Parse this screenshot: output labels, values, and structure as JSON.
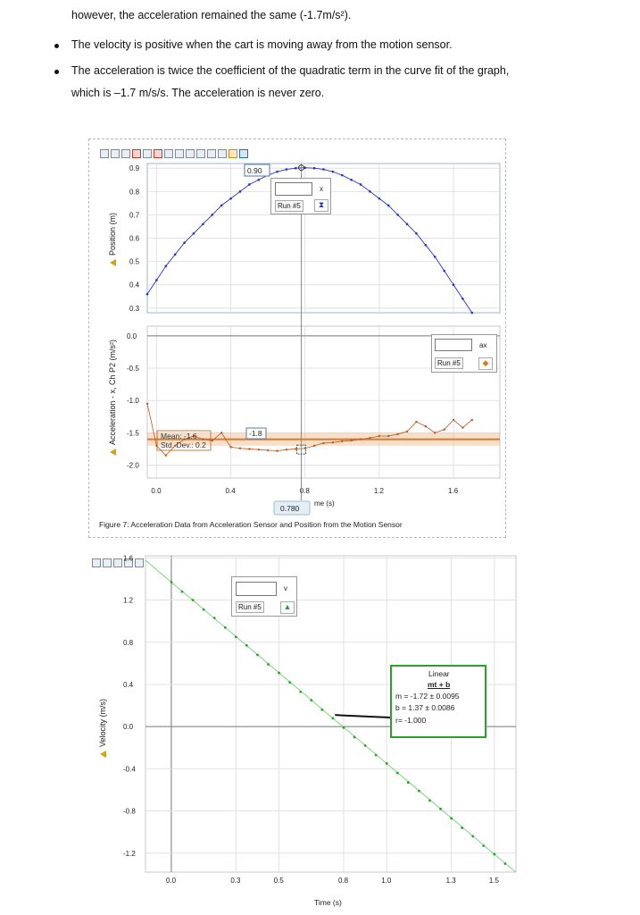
{
  "text": {
    "line1": "however, the acceleration remained the same (-1.7m/s²).",
    "bullet1": "The velocity is positive when the cart is moving away from the motion sensor.",
    "bullet2_line1": "The acceleration is twice the coefficient of the quadratic term in the curve fit of the graph,",
    "bullet2_line2": "which is –1.7 m/s/s. The acceleration is never zero."
  },
  "figure7": {
    "caption": "Figure 7: Acceleration Data from Acceleration Sensor and Position from the Motion Sensor",
    "xaxis_label": "me (s)",
    "cursor_x_label": "0.780",
    "position_readout": "0.90",
    "accel_readout": "-1.8",
    "stats_mean": "Mean: -1.6",
    "stats_std": "Std. Dev.: 0.2",
    "position_control": {
      "unit": "x",
      "run": "Run #5"
    },
    "accel_control": {
      "unit": "ax",
      "run": "Run #5"
    }
  },
  "velocity_graph": {
    "xaxis_label": "Time (s)",
    "control": {
      "unit": "v",
      "run": "Run #5"
    },
    "fit": {
      "title": "Linear",
      "formula": "mt + b",
      "m": "m = -1.72 ± 0.0095",
      "b": "b = 1.37 ± 0.0086",
      "r": "r= -1.000"
    }
  },
  "colors": {
    "position": "#2233cc",
    "accel": "#c0551b",
    "velocity": "#2ca02c",
    "fit_box": "#2ca02c"
  },
  "chart_data": [
    {
      "type": "line",
      "ylabel": "Position (m)",
      "xlim": [
        -0.05,
        1.85
      ],
      "ylim": [
        0.28,
        0.92
      ],
      "xticks": [
        0.0,
        0.4,
        0.8,
        1.2,
        1.6
      ],
      "yticks": [
        0.3,
        0.4,
        0.5,
        0.6,
        0.7,
        0.8,
        0.9
      ],
      "grid": true,
      "series": [
        {
          "name": "Run #5",
          "x": [
            -0.05,
            0.0,
            0.05,
            0.1,
            0.15,
            0.2,
            0.25,
            0.3,
            0.35,
            0.4,
            0.45,
            0.5,
            0.55,
            0.6,
            0.65,
            0.7,
            0.75,
            0.8,
            0.85,
            0.9,
            0.95,
            1.0,
            1.05,
            1.1,
            1.15,
            1.2,
            1.25,
            1.3,
            1.35,
            1.4,
            1.45,
            1.5,
            1.55,
            1.6,
            1.65,
            1.7
          ],
          "y": [
            0.36,
            0.42,
            0.48,
            0.53,
            0.58,
            0.62,
            0.66,
            0.7,
            0.74,
            0.77,
            0.8,
            0.83,
            0.85,
            0.87,
            0.885,
            0.895,
            0.9,
            0.902,
            0.9,
            0.895,
            0.885,
            0.87,
            0.85,
            0.83,
            0.8,
            0.77,
            0.74,
            0.7,
            0.66,
            0.62,
            0.57,
            0.52,
            0.46,
            0.4,
            0.34,
            0.28
          ]
        }
      ]
    },
    {
      "type": "line",
      "ylabel": "Acceleration - x, Ch P2 (m/s²)",
      "xlim": [
        -0.05,
        1.85
      ],
      "ylim": [
        -2.2,
        0.15
      ],
      "xticks": [
        0.0,
        0.4,
        0.8,
        1.2,
        1.6
      ],
      "yticks": [
        0.0,
        -0.5,
        -1.0,
        -1.5,
        -2.0
      ],
      "grid": true,
      "series": [
        {
          "name": "Run #5",
          "x": [
            -0.05,
            0.0,
            0.05,
            0.1,
            0.15,
            0.2,
            0.25,
            0.3,
            0.35,
            0.4,
            0.45,
            0.5,
            0.55,
            0.6,
            0.65,
            0.7,
            0.75,
            0.8,
            0.85,
            0.9,
            0.95,
            1.0,
            1.05,
            1.1,
            1.15,
            1.2,
            1.25,
            1.3,
            1.35,
            1.4,
            1.45,
            1.5,
            1.55,
            1.6,
            1.65,
            1.7
          ],
          "y": [
            -1.05,
            -1.7,
            -1.85,
            -1.7,
            -1.6,
            -1.55,
            -1.6,
            -1.62,
            -1.5,
            -1.72,
            -1.74,
            -1.75,
            -1.76,
            -1.77,
            -1.78,
            -1.76,
            -1.75,
            -1.74,
            -1.7,
            -1.66,
            -1.65,
            -1.63,
            -1.62,
            -1.6,
            -1.58,
            -1.55,
            -1.55,
            -1.52,
            -1.48,
            -1.33,
            -1.4,
            -1.5,
            -1.45,
            -1.3,
            -1.42,
            -1.3
          ]
        }
      ],
      "stats": {
        "mean": -1.6,
        "std_dev": 0.2
      }
    },
    {
      "type": "scatter",
      "ylabel": "Velocity (m/s)",
      "xlabel": "Time (s)",
      "xlim": [
        -0.12,
        1.6
      ],
      "ylim": [
        -1.38,
        1.62
      ],
      "xticks": [
        0.0,
        0.3,
        0.5,
        0.8,
        1.0,
        1.3,
        1.5
      ],
      "yticks": [
        1.6,
        1.2,
        0.8,
        0.4,
        0.0,
        -0.4,
        -0.8,
        -1.2
      ],
      "grid": true,
      "series": [
        {
          "name": "Run #5",
          "x": [
            0.0,
            0.05,
            0.1,
            0.15,
            0.2,
            0.25,
            0.3,
            0.35,
            0.4,
            0.45,
            0.5,
            0.55,
            0.6,
            0.65,
            0.7,
            0.75,
            0.8,
            0.85,
            0.9,
            0.95,
            1.0,
            1.05,
            1.1,
            1.15,
            1.2,
            1.25,
            1.3,
            1.35,
            1.4,
            1.45,
            1.5,
            1.55
          ],
          "y": [
            1.37,
            1.28,
            1.2,
            1.11,
            1.03,
            0.94,
            0.85,
            0.77,
            0.68,
            0.59,
            0.51,
            0.42,
            0.33,
            0.25,
            0.16,
            0.08,
            -0.01,
            -0.1,
            -0.18,
            -0.27,
            -0.35,
            -0.44,
            -0.53,
            -0.61,
            -0.7,
            -0.78,
            -0.87,
            -0.96,
            -1.04,
            -1.13,
            -1.21,
            -1.3
          ]
        }
      ],
      "fit": {
        "type": "linear",
        "m": -1.72,
        "b": 1.37
      }
    }
  ]
}
